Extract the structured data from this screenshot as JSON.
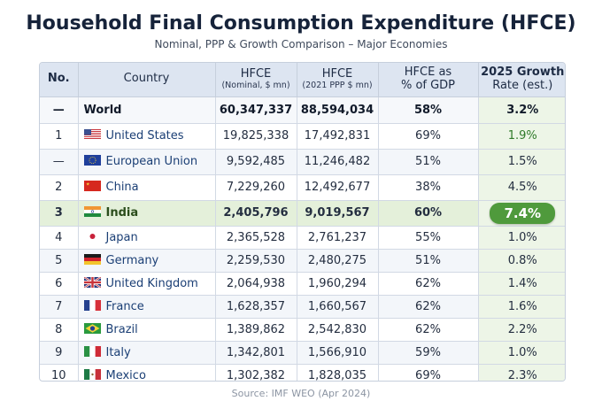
{
  "header": {
    "title": "Household Final Consumption Expenditure (HFCE)",
    "subtitle": "Nominal, PPP & Growth Comparison – Major Economies"
  },
  "columns": {
    "no": "No.",
    "country": "Country",
    "nominal_main": "HFCE",
    "nominal_sub": "(Nominal, $ mn)",
    "ppp_main": "HFCE",
    "ppp_sub": "(2021 PPP $ mn)",
    "gdp_main": "HFCE as",
    "gdp_sub": "% of GDP",
    "growth_main": "2025 Growth",
    "growth_sub": "Rate (est.)"
  },
  "rows": [
    {
      "no": "—",
      "country": "World",
      "flag": "none",
      "nominal": "60,347,337",
      "ppp": "88,594,034",
      "gdp": "58%",
      "growth": "3.2%"
    },
    {
      "no": "1",
      "country": "United States",
      "flag": "us-flag",
      "nominal": "19,825,338",
      "ppp": "17,492,831",
      "gdp": "69%",
      "growth": "1.9%"
    },
    {
      "no": "—",
      "country": "European Union",
      "flag": "eu-flag",
      "nominal": "9,592,485",
      "ppp": "11,246,482",
      "gdp": "51%",
      "growth": "1.5%"
    },
    {
      "no": "2",
      "country": "China",
      "flag": "china-flag",
      "nominal": "7,229,260",
      "ppp": "12,492,677",
      "gdp": "38%",
      "growth": "4.5%"
    },
    {
      "no": "3",
      "country": "India",
      "flag": "india-flag",
      "nominal": "2,405,796",
      "ppp": "9,019,567",
      "gdp": "60%",
      "growth": "7.4%"
    },
    {
      "no": "4",
      "country": "Japan",
      "flag": "japan-flag",
      "nominal": "2,365,528",
      "ppp": "2,761,237",
      "gdp": "55%",
      "growth": "1.0%"
    },
    {
      "no": "5",
      "country": "Germany",
      "flag": "germany-flag",
      "nominal": "2,259,530",
      "ppp": "2,480,275",
      "gdp": "51%",
      "growth": "0.8%"
    },
    {
      "no": "6",
      "country": "United Kingdom",
      "flag": "uk-flag",
      "nominal": "2,064,938",
      "ppp": "1,960,294",
      "gdp": "62%",
      "growth": "1.4%"
    },
    {
      "no": "7",
      "country": "France",
      "flag": "france-flag",
      "nominal": "1,628,357",
      "ppp": "1,660,567",
      "gdp": "62%",
      "growth": "1.6%"
    },
    {
      "no": "8",
      "country": "Brazil",
      "flag": "brazil-flag",
      "nominal": "1,389,862",
      "ppp": "2,542,830",
      "gdp": "62%",
      "growth": "2.2%"
    },
    {
      "no": "9",
      "country": "Italy",
      "flag": "italy-flag",
      "nominal": "1,342,801",
      "ppp": "1,566,910",
      "gdp": "59%",
      "growth": "1.0%"
    },
    {
      "no": "10",
      "country": "Mexico",
      "flag": "mexico-flag",
      "nominal": "1,302,382",
      "ppp": "1,828,035",
      "gdp": "69%",
      "growth": "2.3%"
    }
  ],
  "footer": {
    "source": "Source: IMF WEO (Apr 2024)"
  },
  "colors": {
    "header_bg": "#dde5f1",
    "highlight_row": "#e4f0da",
    "growth_pill": "#4f9a3c",
    "growth_text": "#2f7a2a",
    "country_text": "#1b3f75"
  }
}
